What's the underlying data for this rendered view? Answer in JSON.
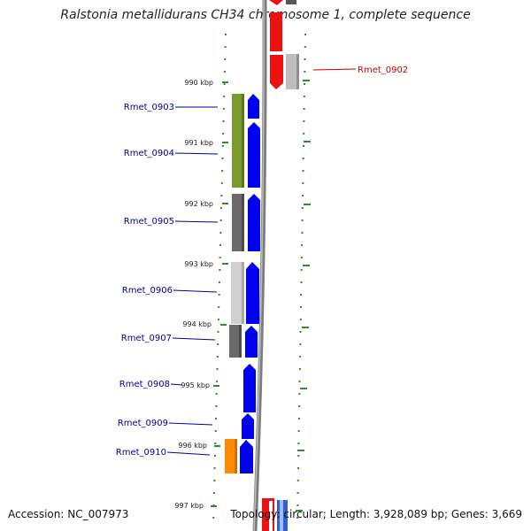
{
  "title": "Ralstonia metallidurans CH34 chromosome 1, complete sequence",
  "footer": {
    "accession": "Accession: NC_007973",
    "summary": "Topology: circular; Length: 3,928,089 bp; Genes: 3,669"
  },
  "colors": {
    "tick": "#2e8b2e",
    "forward_strand": "#0000ee",
    "reverse_strand": "#ee1111",
    "label_blue": "#000099",
    "label_red": "#cc0000",
    "backbone": "#888888",
    "olive": "#7a9a2e",
    "dark_gray": "#6a6a6a",
    "light_gray": "#cfcfcf",
    "orange": "#ff8c00"
  },
  "ticks": [
    {
      "label": "990 kbp"
    },
    {
      "label": "991 kbp"
    },
    {
      "label": "992 kbp"
    },
    {
      "label": "993 kbp"
    },
    {
      "label": "994 kbp"
    },
    {
      "label": "995 kbp"
    },
    {
      "label": "996 kbp"
    },
    {
      "label": "997 kbp"
    }
  ],
  "genes": [
    {
      "label": "Rmet_0902",
      "strand": "reverse",
      "color": "red"
    },
    {
      "label": "Rmet_0903",
      "strand": "forward",
      "color": "blue"
    },
    {
      "label": "Rmet_0904",
      "strand": "forward",
      "color": "blue"
    },
    {
      "label": "Rmet_0905",
      "strand": "forward",
      "color": "blue"
    },
    {
      "label": "Rmet_0906",
      "strand": "forward",
      "color": "blue"
    },
    {
      "label": "Rmet_0907",
      "strand": "forward",
      "color": "blue"
    },
    {
      "label": "Rmet_0908",
      "strand": "forward",
      "color": "blue"
    },
    {
      "label": "Rmet_0909",
      "strand": "forward",
      "color": "blue"
    },
    {
      "label": "Rmet_0910",
      "strand": "forward",
      "color": "blue"
    }
  ]
}
